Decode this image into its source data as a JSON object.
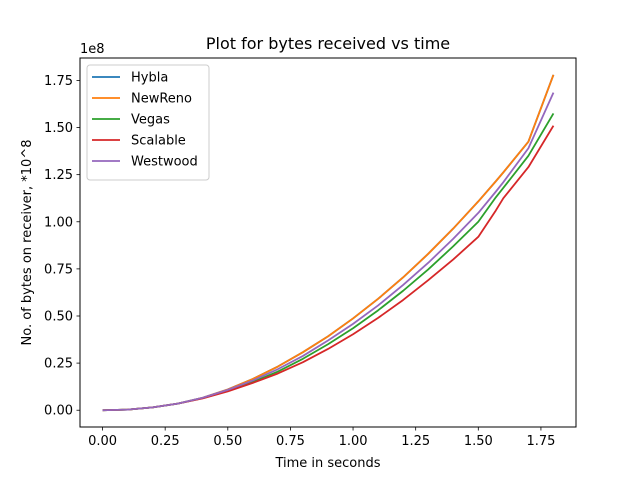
{
  "chart_data": {
    "type": "line",
    "title": "Plot for bytes received vs time",
    "xlabel": "Time in seconds",
    "ylabel": "No. of bytes on receiver, *10^8",
    "y_offset_label": "1e8",
    "xlim": [
      -0.09,
      1.89
    ],
    "ylim": [
      -0.089,
      1.869
    ],
    "x_ticks": [
      0.0,
      0.25,
      0.5,
      0.75,
      1.0,
      1.25,
      1.5,
      1.75
    ],
    "x_tick_labels": [
      "0.00",
      "0.25",
      "0.50",
      "0.75",
      "1.00",
      "1.25",
      "1.50",
      "1.75"
    ],
    "y_ticks": [
      0.0,
      0.25,
      0.5,
      0.75,
      1.0,
      1.25,
      1.5,
      1.75
    ],
    "y_tick_labels": [
      "0.00",
      "0.25",
      "0.50",
      "0.75",
      "1.00",
      "1.25",
      "1.50",
      "1.75"
    ],
    "grid": false,
    "legend_position": "top-left",
    "x": [
      0.0,
      0.1,
      0.2,
      0.3,
      0.4,
      0.5,
      0.6,
      0.7,
      0.8,
      0.9,
      1.0,
      1.1,
      1.2,
      1.3,
      1.4,
      1.5,
      1.57,
      1.6,
      1.7,
      1.8
    ],
    "series": [
      {
        "name": "Hybla",
        "color": "#1f77b4",
        "values": [
          0.0,
          0.003,
          0.015,
          0.035,
          0.066,
          0.11,
          0.166,
          0.232,
          0.308,
          0.392,
          0.487,
          0.591,
          0.705,
          0.83,
          0.964,
          1.108,
          1.215,
          1.262,
          1.425,
          1.78
        ]
      },
      {
        "name": "NewReno",
        "color": "#ff7f0e",
        "values": [
          0.0,
          0.003,
          0.015,
          0.035,
          0.066,
          0.11,
          0.166,
          0.232,
          0.308,
          0.392,
          0.487,
          0.591,
          0.705,
          0.83,
          0.964,
          1.108,
          1.215,
          1.262,
          1.425,
          1.78
        ]
      },
      {
        "name": "Vegas",
        "color": "#2ca02c",
        "values": [
          0.0,
          0.003,
          0.015,
          0.035,
          0.064,
          0.103,
          0.15,
          0.205,
          0.273,
          0.35,
          0.435,
          0.53,
          0.634,
          0.747,
          0.87,
          1.0,
          1.13,
          1.18,
          1.35,
          1.575
        ]
      },
      {
        "name": "Scalable",
        "color": "#d62728",
        "values": [
          0.0,
          0.003,
          0.015,
          0.035,
          0.063,
          0.1,
          0.145,
          0.195,
          0.255,
          0.325,
          0.403,
          0.49,
          0.585,
          0.69,
          0.8,
          0.92,
          1.06,
          1.125,
          1.29,
          1.51
        ]
      },
      {
        "name": "Westwood",
        "color": "#9467bd",
        "values": [
          0.0,
          0.003,
          0.015,
          0.035,
          0.066,
          0.108,
          0.158,
          0.218,
          0.288,
          0.37,
          0.458,
          0.556,
          0.665,
          0.782,
          0.91,
          1.047,
          1.16,
          1.21,
          1.39,
          1.685
        ]
      }
    ]
  }
}
